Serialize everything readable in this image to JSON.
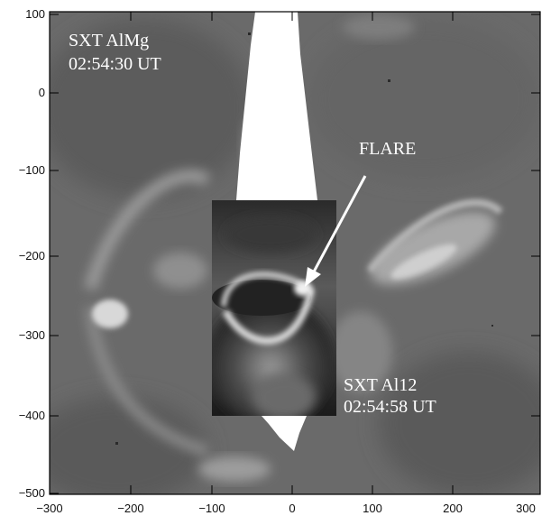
{
  "image": {
    "description_free": true,
    "axes": {
      "x_ticks": [
        "−300",
        "−200",
        "−100",
        "0",
        "100",
        "200",
        "300"
      ],
      "y_ticks": [
        "100",
        "0",
        "−100",
        "−200",
        "−300",
        "−400",
        "−500"
      ],
      "xlim": [
        -300,
        300
      ],
      "ylim": [
        -500,
        100
      ]
    },
    "labels": {
      "main_filter": "SXT AlMg",
      "main_time": "02:54:30 UT",
      "inset_filter": "SXT Al12",
      "inset_time": "02:54:58 UT",
      "flare": "FLARE"
    },
    "colors": {
      "background_gray": "#6b6b6b",
      "annotation": "#ffffff"
    }
  }
}
